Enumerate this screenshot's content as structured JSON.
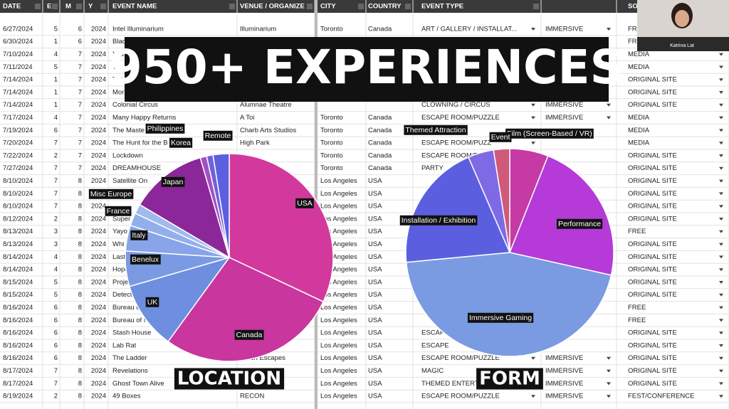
{
  "overlay_title": "950+ EXPERIENCES",
  "webcam": {
    "name": "Katrina Lat"
  },
  "sheet": {
    "headers": [
      "DATE",
      "E",
      "M",
      "Y",
      "EVENT NAME",
      "VENUE / ORGANIZE",
      "CITY",
      "COUNTRY",
      "EVENT TYPE",
      null,
      "SOUR"
    ],
    "rows": [
      [
        "6/27/2024",
        "5",
        "6",
        "2024",
        "Intel Illuminarium",
        "Illuminarium",
        "Toronto",
        "Canada",
        "ART / GALLERY / INSTALLAT...",
        "IMMERSIVE",
        "FRI"
      ],
      [
        "6/30/2024",
        "1",
        "6",
        "2024",
        "Blad",
        null,
        null,
        null,
        null,
        null,
        "FRI"
      ],
      [
        "7/10/2024",
        "4",
        "7",
        "2024",
        "You",
        null,
        null,
        null,
        null,
        null,
        "MEDIA"
      ],
      [
        "7/11/2024",
        "5",
        "7",
        "2024",
        "The",
        null,
        null,
        null,
        null,
        null,
        "MEDIA"
      ],
      [
        "7/14/2024",
        "1",
        "7",
        "2024",
        "Ton",
        null,
        null,
        null,
        null,
        null,
        "ORIGINAL SITE"
      ],
      [
        "7/14/2024",
        "1",
        "7",
        "2024",
        "Mor",
        null,
        null,
        null,
        null,
        null,
        "ORIGINAL SITE"
      ],
      [
        "7/14/2024",
        "1",
        "7",
        "2024",
        "Colonial Circus",
        "Alumnae Theatre",
        null,
        null,
        "CLOWNING / CIRCUS",
        "IMMERSIVE",
        "ORIGINAL SITE"
      ],
      [
        "7/17/2024",
        "4",
        "7",
        "2024",
        "Many Happy Returns",
        "A Toi",
        "Toronto",
        "Canada",
        "ESCAPE ROOM/PUZZLE",
        "IMMERSIVE",
        "MEDIA"
      ],
      [
        "7/19/2024",
        "6",
        "7",
        "2024",
        "The Maste",
        "Charb Arts Studios",
        "Toronto",
        "Canada",
        null,
        null,
        "MEDIA"
      ],
      [
        "7/20/2024",
        "7",
        "7",
        "2024",
        "The Hunt for the B",
        "High Park",
        "Toronto",
        "Canada",
        "ESCAPE ROOM/PUZZ",
        null,
        "MEDIA"
      ],
      [
        "7/22/2024",
        "2",
        "7",
        "2024",
        "Lockdown",
        null,
        "Toronto",
        "Canada",
        "ESCAPE ROOM/PUZZLE",
        null,
        "ORIGINAL SITE"
      ],
      [
        "7/27/2024",
        "7",
        "7",
        "2024",
        "DREAMHOUSE",
        null,
        "Toronto",
        "Canada",
        "PARTY",
        null,
        "ORIGINAL SITE"
      ],
      [
        "8/10/2024",
        "7",
        "8",
        "2024",
        "Satellite On",
        null,
        "Los Angeles",
        "USA",
        null,
        null,
        "ORIGINAL SITE"
      ],
      [
        "8/10/2024",
        "7",
        "8",
        "2024",
        null,
        null,
        "Los Angeles",
        "USA",
        null,
        null,
        "ORIGINAL SITE"
      ],
      [
        "8/10/2024",
        "7",
        "8",
        "2024",
        null,
        null,
        "Los Angeles",
        "USA",
        null,
        null,
        "ORIGINAL SITE"
      ],
      [
        "8/12/2024",
        "2",
        "8",
        "2024",
        "Super",
        null,
        "Los Angeles",
        "USA",
        null,
        null,
        "ORIGINAL SITE"
      ],
      [
        "8/13/2024",
        "3",
        "8",
        "2024",
        "Yayo",
        null,
        "Los Angeles",
        "USA",
        null,
        null,
        "FREE"
      ],
      [
        "8/13/2024",
        "3",
        "8",
        "2024",
        "Whi",
        null,
        "Los Angeles",
        "USA",
        null,
        null,
        "ORIGINAL SITE"
      ],
      [
        "8/14/2024",
        "4",
        "8",
        "2024",
        "Last",
        null,
        "Los Angeles",
        "USA",
        null,
        null,
        "ORIGINAL SITE"
      ],
      [
        "8/14/2024",
        "4",
        "8",
        "2024",
        "Hope",
        null,
        "Los Angeles",
        "USA",
        null,
        null,
        "ORIGINAL SITE"
      ],
      [
        "8/15/2024",
        "5",
        "8",
        "2024",
        "Proje",
        null,
        "Los Angeles",
        "USA",
        null,
        null,
        "ORIGINAL SITE"
      ],
      [
        "8/15/2024",
        "5",
        "8",
        "2024",
        "Detect",
        null,
        "Los Angeles",
        "USA",
        null,
        null,
        "ORIGINAL SITE"
      ],
      [
        "8/16/2024",
        "6",
        "8",
        "2024",
        "Bureau of",
        null,
        "Los Angeles",
        "USA",
        null,
        null,
        "FREE"
      ],
      [
        "8/16/2024",
        "6",
        "8",
        "2024",
        "Bureau of N",
        null,
        "Los Angeles",
        "USA",
        null,
        null,
        "FREE"
      ],
      [
        "8/16/2024",
        "6",
        "8",
        "2024",
        "Stash House",
        null,
        "Los Angeles",
        "USA",
        "ESCAPE",
        null,
        "ORIGINAL SITE"
      ],
      [
        "8/16/2024",
        "6",
        "8",
        "2024",
        "Lab Rat",
        null,
        "Los Angeles",
        "USA",
        "ESCAPE",
        null,
        "ORIGINAL SITE"
      ],
      [
        "8/16/2024",
        "6",
        "8",
        "2024",
        "The Ladder",
        "Hatch Escapes",
        "Los Angeles",
        "USA",
        "ESCAPE ROOM/PUZZLE",
        "IMMERSIVE",
        "ORIGINAL SITE"
      ],
      [
        "8/17/2024",
        "7",
        "8",
        "2024",
        "Revelations",
        null,
        "Los Angeles",
        "USA",
        "MAGIC",
        "IMMERSIVE",
        "ORIGINAL SITE"
      ],
      [
        "8/17/2024",
        "7",
        "8",
        "2024",
        "Ghost Town Alive",
        null,
        "Los Angeles",
        "USA",
        "THEMED ENTERTA",
        "IMMERSIVE",
        "ORIGINAL SITE"
      ],
      [
        "8/19/2024",
        "2",
        "8",
        "2024",
        "49 Boxes",
        "RECON",
        "Los Angeles",
        "USA",
        "ESCAPE ROOM/PUZZLE",
        "IMMERSIVE",
        "FEST/CONFERENCE"
      ]
    ]
  },
  "chart_data": [
    {
      "type": "pie",
      "title": "LOCATION",
      "categories": [
        "USA",
        "Canada",
        "UK",
        "Benelux",
        "Italy",
        "France",
        "Misc Europe",
        "Japan",
        "Philippines",
        "Korea",
        "Remote"
      ],
      "values": [
        32,
        28,
        10.5,
        5.5,
        4,
        2,
        1.5,
        12,
        1,
        1,
        2.5
      ],
      "colors": [
        "#d3399c",
        "#c8369e",
        "#6e8fe0",
        "#7b9ae4",
        "#87a5e8",
        "#93afeb",
        "#a0baef",
        "#8b2798",
        "#a44fc6",
        "#6f63d9",
        "#5b5fe0"
      ]
    },
    {
      "type": "pie",
      "title": "FORM",
      "categories": [
        "Film (Screen-Based / VR)",
        "Performance",
        "Immersive Gaming",
        "Installation / Exhibition",
        "Themed Attraction",
        "Event"
      ],
      "values": [
        6,
        22.5,
        45,
        20,
        4,
        2.5
      ],
      "colors": [
        "#c63aa6",
        "#b53ad8",
        "#7a9be2",
        "#5b5fdf",
        "#7f6ae5",
        "#d05a7a"
      ]
    }
  ]
}
